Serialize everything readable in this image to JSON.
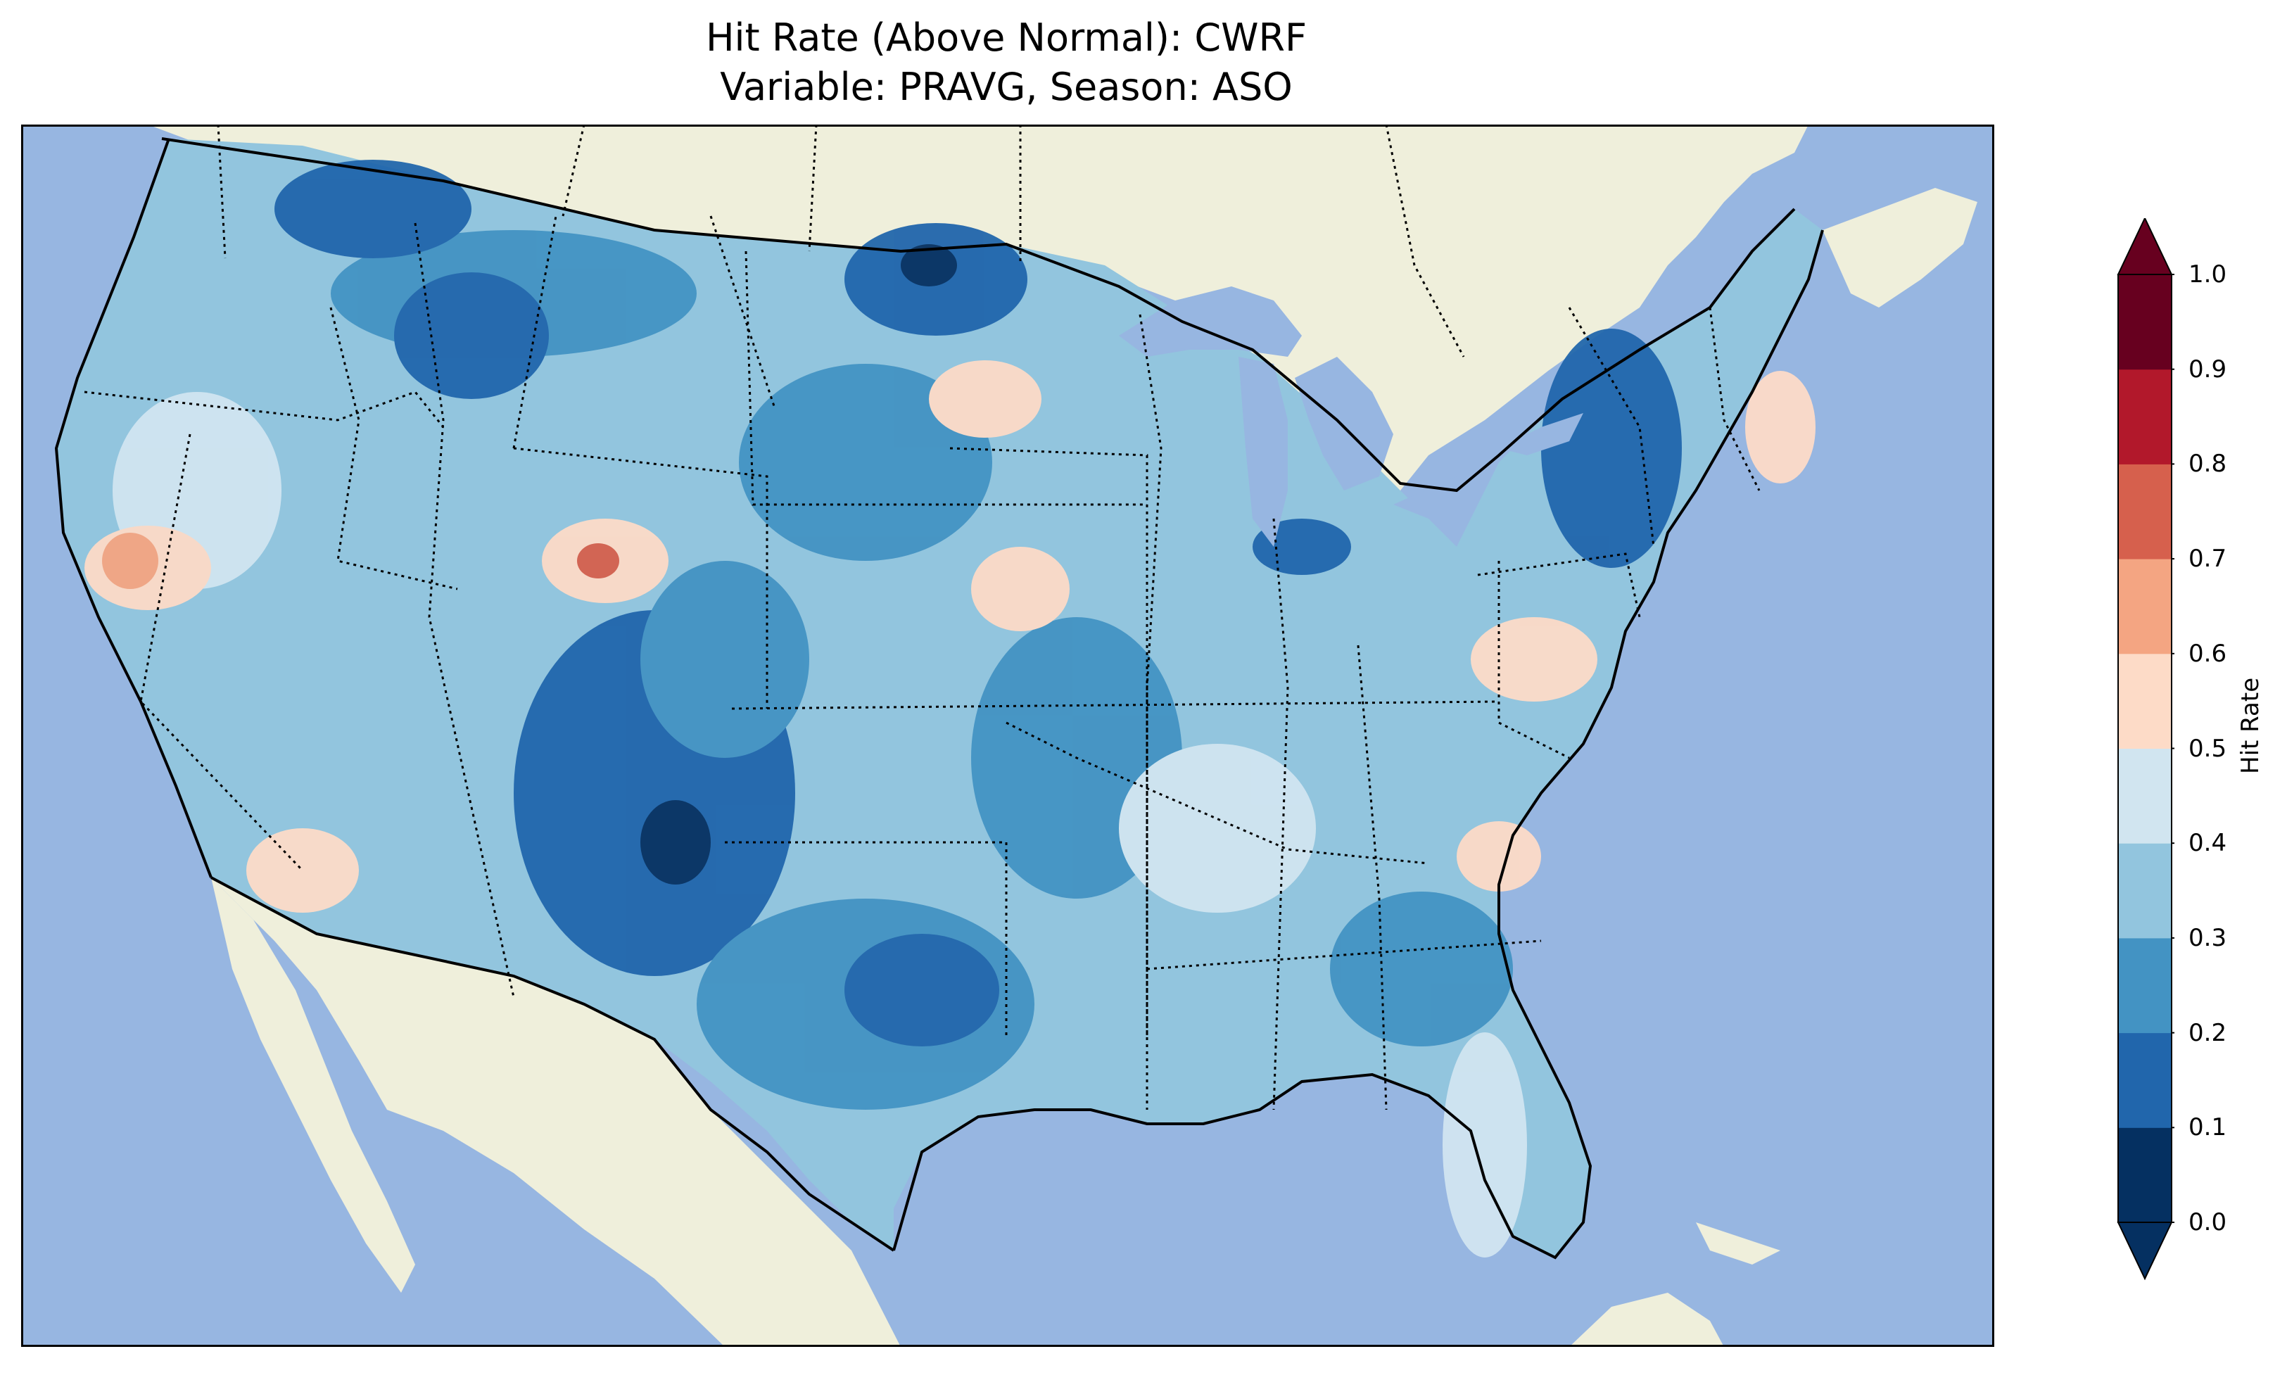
{
  "title": {
    "line1": "Hit Rate (Above Normal): CWRF",
    "line2": "Variable: PRAVG, Season: ASO"
  },
  "colorbar": {
    "label": "Hit Rate",
    "ticks": [
      "0.0",
      "0.1",
      "0.2",
      "0.3",
      "0.4",
      "0.5",
      "0.6",
      "0.7",
      "0.8",
      "0.9",
      "1.0"
    ],
    "colors": [
      "#053061",
      "#2166ac",
      "#4393c3",
      "#92c5de",
      "#d1e5f0",
      "#fddbc7",
      "#f4a582",
      "#d6604d",
      "#b2182b",
      "#67001f"
    ],
    "under_color": "#053061",
    "over_color": "#67001f",
    "extend": "both"
  },
  "map": {
    "ocean_color": "#97b6e1",
    "land_color": "#efefdb",
    "boundaries": [
      "coastlines",
      "country borders",
      "state borders"
    ]
  }
}
